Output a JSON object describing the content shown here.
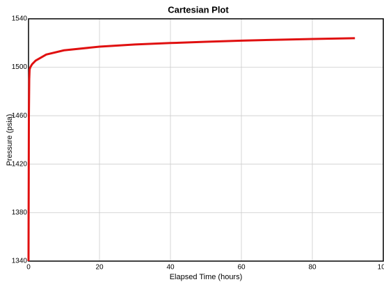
{
  "chart_data": {
    "type": "line",
    "title": "Cartesian Plot",
    "x_label": "Elapsed Time (hours)",
    "y_label": "Pressure (psia)",
    "x": [
      0,
      0.02,
      0.05,
      0.1,
      0.2,
      0.3,
      0.5,
      1,
      2,
      5,
      10,
      20,
      30,
      40,
      50,
      60,
      70,
      80,
      92
    ],
    "series": [
      {
        "name": "Pressure",
        "color": "#e01010",
        "values": [
          1340,
          1370,
          1400,
          1460,
          1490,
          1498,
          1500,
          1502.5,
          1505.5,
          1510.5,
          1514,
          1517,
          1518.8,
          1520,
          1521,
          1522,
          1522.7,
          1523.3,
          1524
        ]
      }
    ],
    "xlim": [
      0,
      100
    ],
    "xticks": [
      0,
      20,
      40,
      60,
      80,
      100
    ],
    "ylim": [
      1340,
      1540
    ],
    "yticks": [
      1340,
      1380,
      1420,
      1460,
      1500,
      1540
    ],
    "grid": true
  }
}
